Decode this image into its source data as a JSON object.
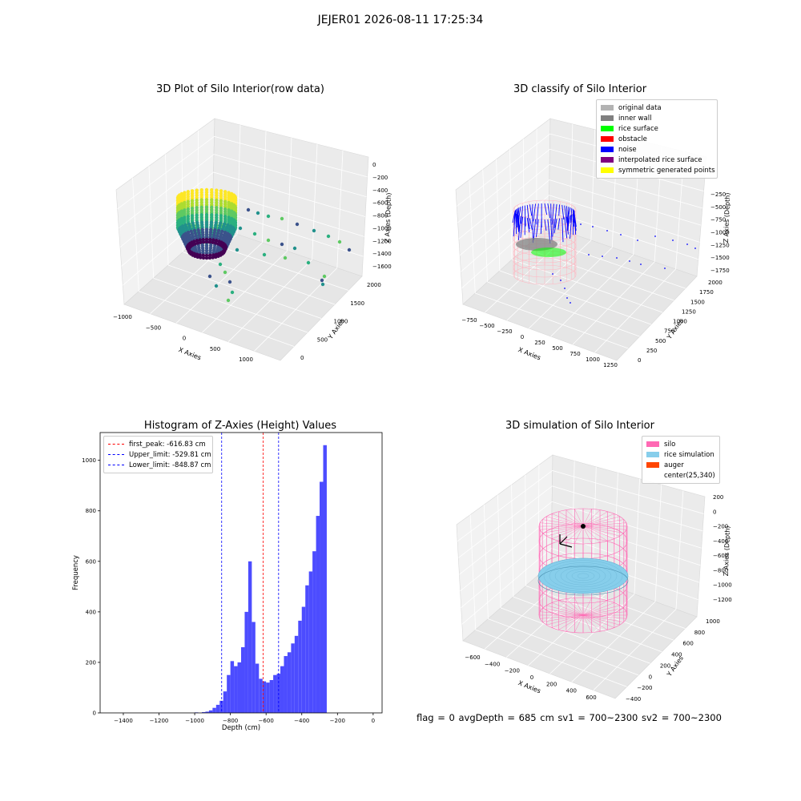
{
  "suptitle": "JEJER01 2026-08-11 17:25:34",
  "footer": "flag = 0     avgDepth = 685 cm  sv1 = 700~2300  sv2 = 700~2300",
  "colors": {
    "hist_bar": "#4c4cff",
    "first_peak": "#ff0000",
    "limits": "#0000ff",
    "silo_mesh": "#ff69b4",
    "rice": "#87ceeb",
    "auger": "#ff4500"
  },
  "chart_data": [
    {
      "id": "raw",
      "type": "scatter3d",
      "title": "3D Plot of Silo Interior(row data)",
      "xlabel": "X Axies",
      "ylabel": "Y Axies",
      "zlabel": "Z Axies (Depth)",
      "xticks": [
        "−1000",
        "−500",
        "0",
        "500",
        "1000"
      ],
      "yticks": [
        "0",
        "500",
        "1000",
        "1500",
        "2000"
      ],
      "zticks": [
        "0",
        "−200",
        "−400",
        "−600",
        "−800",
        "−1000",
        "−1200",
        "−1400",
        "−1600"
      ],
      "colormap": "viridis",
      "xlim": [
        -1000,
        1000
      ],
      "ylim": [
        0,
        2000
      ],
      "zlim": [
        -1600,
        0
      ]
    },
    {
      "id": "classify",
      "type": "scatter3d",
      "title": "3D classify of Silo Interior",
      "xlabel": "X Axies",
      "ylabel": "Y Axies",
      "zlabel": "Z Axies (Depth)",
      "xticks": [
        "−750",
        "−500",
        "−250",
        "0",
        "250",
        "500",
        "750",
        "1000",
        "1250"
      ],
      "yticks": [
        "0",
        "250",
        "500",
        "750",
        "1000",
        "1250",
        "1500",
        "1750",
        "2000"
      ],
      "zticks": [
        "−250",
        "−500",
        "−750",
        "−1000",
        "−1250",
        "−1500",
        "−1750"
      ],
      "legend": [
        {
          "label": "original data",
          "color": "#b3b3b3"
        },
        {
          "label": "inner wall",
          "color": "#808080"
        },
        {
          "label": "rice surface",
          "color": "#00ff00"
        },
        {
          "label": "obstacle",
          "color": "#ff0000"
        },
        {
          "label": "noise",
          "color": "#0000ff"
        },
        {
          "label": "interpolated rice surface",
          "color": "#800080"
        },
        {
          "label": "symmetric generated points",
          "color": "#ffff00"
        }
      ]
    },
    {
      "id": "hist",
      "type": "bar",
      "title": "Histogram of Z-Axies (Height) Values",
      "xlabel": "Depth (cm)",
      "ylabel": "Frequency",
      "xlim": [
        -1530,
        50
      ],
      "ylim": [
        0,
        1110
      ],
      "xticks": [
        -1400,
        -1200,
        -1000,
        -800,
        -600,
        -400,
        -200,
        0
      ],
      "xtick_labels": [
        "−1400",
        "−1200",
        "−1000",
        "−800",
        "−600",
        "−400",
        "−200",
        "0"
      ],
      "yticks": [
        0,
        200,
        400,
        600,
        800,
        1000
      ],
      "bin_width": 20,
      "bin_starts": [
        -1000,
        -980,
        -960,
        -940,
        -920,
        -900,
        -880,
        -860,
        -840,
        -820,
        -800,
        -780,
        -760,
        -740,
        -720,
        -700,
        -680,
        -660,
        -640,
        -620,
        -600,
        -580,
        -560,
        -540,
        -520,
        -500,
        -480,
        -460,
        -440,
        -420,
        -400,
        -380,
        -360,
        -340,
        -320,
        -300,
        -280,
        -260,
        -240,
        -220,
        -200,
        -180,
        -160,
        -140,
        -120,
        -100,
        -80,
        -60,
        -40,
        -20
      ],
      "values": [
        2,
        0,
        3,
        5,
        10,
        20,
        32,
        48,
        85,
        150,
        205,
        185,
        200,
        260,
        400,
        600,
        360,
        195,
        135,
        125,
        120,
        130,
        150,
        155,
        185,
        225,
        240,
        275,
        305,
        365,
        420,
        505,
        560,
        640,
        780,
        915,
        1060,
        0,
        0,
        0,
        0,
        0,
        0,
        0,
        0,
        0,
        0,
        0,
        0,
        0
      ],
      "vlines": [
        {
          "label": "first_peak: -616.83 cm",
          "x": -616.83,
          "color": "#ff0000"
        },
        {
          "label": "Upper_limit: -529.81 cm",
          "x": -529.81,
          "color": "#0000ff"
        },
        {
          "label": "Lower_limit: -848.87 cm",
          "x": -848.87,
          "color": "#0000ff"
        }
      ]
    },
    {
      "id": "sim",
      "type": "surface3d",
      "title": "3D simulation of Silo Interior",
      "xlabel": "X Axies",
      "ylabel": "Y Axies",
      "zlabel": "Z Axies (Depth)",
      "xticks": [
        "−600",
        "−400",
        "−200",
        "0",
        "200",
        "400",
        "600"
      ],
      "yticks": [
        "−400",
        "−200",
        "0",
        "200",
        "400",
        "600",
        "800",
        "1000"
      ],
      "zticks": [
        "200",
        "0",
        "−200",
        "−400",
        "−600",
        "−800",
        "−1000",
        "−1200"
      ],
      "legend": [
        {
          "label": "silo",
          "color": "#ff69b4"
        },
        {
          "label": "rice simulation",
          "color": "#87ceeb"
        },
        {
          "label": "auger",
          "color": "#ff4500"
        },
        {
          "label": "center(25,340)",
          "color": ""
        }
      ]
    }
  ]
}
